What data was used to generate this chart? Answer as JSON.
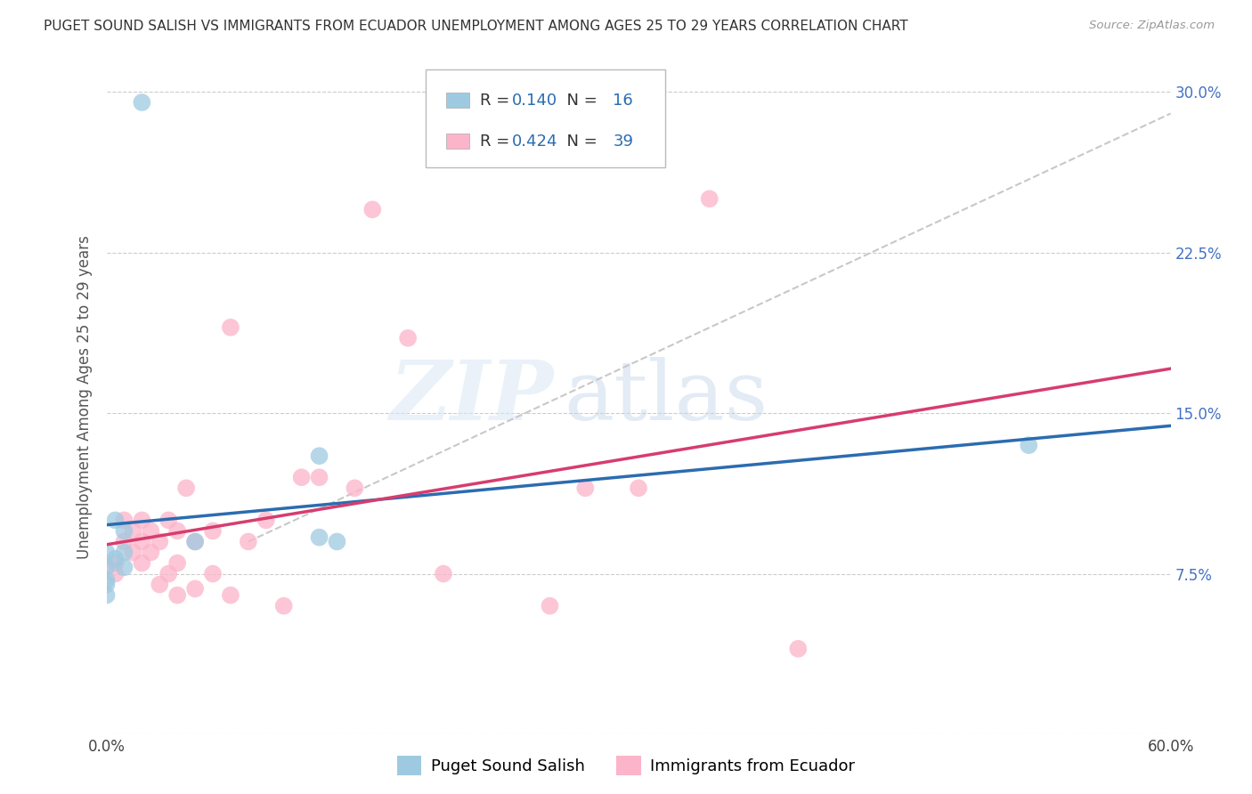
{
  "title": "PUGET SOUND SALISH VS IMMIGRANTS FROM ECUADOR UNEMPLOYMENT AMONG AGES 25 TO 29 YEARS CORRELATION CHART",
  "source": "Source: ZipAtlas.com",
  "ylabel": "Unemployment Among Ages 25 to 29 years",
  "xmin": 0.0,
  "xmax": 0.6,
  "ymin": 0.0,
  "ymax": 0.315,
  "yticks": [
    0.0,
    0.075,
    0.15,
    0.225,
    0.3
  ],
  "ytick_labels_right": [
    "",
    "7.5%",
    "15.0%",
    "22.5%",
    "30.0%"
  ],
  "xticks": [
    0.0,
    0.1,
    0.2,
    0.3,
    0.4,
    0.5,
    0.6
  ],
  "xtick_labels": [
    "0.0%",
    "",
    "",
    "",
    "",
    "",
    "60.0%"
  ],
  "blue_R": "0.140",
  "blue_N": "16",
  "pink_R": "0.424",
  "pink_N": "39",
  "legend_label_blue": "Puget Sound Salish",
  "legend_label_pink": "Immigrants from Ecuador",
  "blue_color": "#9ecae1",
  "pink_color": "#fbb4c9",
  "blue_line_color": "#2b6cb0",
  "pink_line_color": "#d63d6f",
  "dashed_line_color": "#c8c8c8",
  "watermark_zip": "ZIP",
  "watermark_atlas": "atlas",
  "background_color": "#ffffff",
  "grid_color": "#cccccc",
  "blue_scatter_x": [
    0.02,
    0.005,
    0.01,
    0.0,
    0.01,
    0.005,
    0.0,
    0.01,
    0.0,
    0.12,
    0.13,
    0.05,
    0.0,
    0.0,
    0.52,
    0.12
  ],
  "blue_scatter_y": [
    0.295,
    0.1,
    0.095,
    0.085,
    0.085,
    0.082,
    0.078,
    0.078,
    0.072,
    0.13,
    0.09,
    0.09,
    0.07,
    0.065,
    0.135,
    0.092
  ],
  "pink_scatter_x": [
    0.005,
    0.005,
    0.01,
    0.01,
    0.015,
    0.015,
    0.02,
    0.02,
    0.02,
    0.025,
    0.025,
    0.03,
    0.03,
    0.035,
    0.035,
    0.04,
    0.04,
    0.04,
    0.045,
    0.05,
    0.05,
    0.06,
    0.06,
    0.07,
    0.07,
    0.08,
    0.09,
    0.1,
    0.11,
    0.12,
    0.14,
    0.15,
    0.17,
    0.19,
    0.25,
    0.27,
    0.3,
    0.34,
    0.39
  ],
  "pink_scatter_y": [
    0.08,
    0.075,
    0.09,
    0.1,
    0.085,
    0.095,
    0.08,
    0.09,
    0.1,
    0.085,
    0.095,
    0.07,
    0.09,
    0.075,
    0.1,
    0.065,
    0.08,
    0.095,
    0.115,
    0.068,
    0.09,
    0.075,
    0.095,
    0.065,
    0.19,
    0.09,
    0.1,
    0.06,
    0.12,
    0.12,
    0.115,
    0.245,
    0.185,
    0.075,
    0.06,
    0.115,
    0.115,
    0.25,
    0.04
  ],
  "tick_label_color": "#4472c4",
  "axis_label_color": "#555555"
}
